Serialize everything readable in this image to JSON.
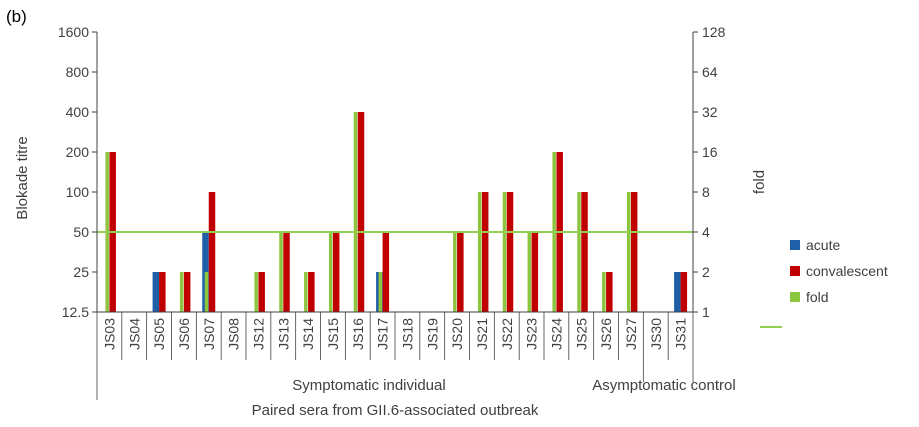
{
  "panel_label": "(b)",
  "chart_data": {
    "type": "bar",
    "ylabel_left": "Blokade titre",
    "ylabel_right": "fold",
    "yscale": "log",
    "ylim_left": [
      12.5,
      1600
    ],
    "ylim_right": [
      1,
      128
    ],
    "yticks_left": [
      "12.5",
      "25",
      "50",
      "100",
      "200",
      "400",
      "800",
      "1600"
    ],
    "yticks_right": [
      "1",
      "2",
      "4",
      "8",
      "16",
      "32",
      "64",
      "128"
    ],
    "categories": [
      "JS03",
      "JS04",
      "JS05",
      "JS06",
      "JS07",
      "JS08",
      "JS12",
      "JS13",
      "JS14",
      "JS15",
      "JS16",
      "JS17",
      "JS18",
      "JS19",
      "JS20",
      "JS21",
      "JS22",
      "JS23",
      "JS24",
      "JS25",
      "JS26",
      "JS27",
      "JS30",
      "JS31"
    ],
    "series": [
      {
        "name": "acute",
        "axis": "left",
        "color": "#1f5fa8",
        "values": [
          null,
          null,
          25,
          null,
          50,
          null,
          null,
          null,
          null,
          null,
          null,
          25,
          null,
          null,
          null,
          null,
          null,
          null,
          null,
          null,
          null,
          null,
          null,
          25
        ]
      },
      {
        "name": "convalescent",
        "axis": "left",
        "color": "#c00000",
        "values": [
          200,
          null,
          25,
          25,
          100,
          null,
          25,
          50,
          25,
          50,
          400,
          50,
          null,
          null,
          50,
          100,
          100,
          50,
          200,
          100,
          25,
          100,
          null,
          25
        ]
      },
      {
        "name": "fold",
        "axis": "right",
        "color": "#8cc63f",
        "values": [
          16,
          null,
          null,
          2,
          2,
          null,
          2,
          4,
          2,
          4,
          32,
          2,
          null,
          null,
          4,
          8,
          8,
          4,
          16,
          8,
          2,
          8,
          null,
          null
        ]
      }
    ],
    "threshold": {
      "value": 4,
      "axis": "right",
      "color": "#92d050"
    },
    "groups": [
      {
        "label": "Symptomatic individual"
      },
      {
        "label": "Asymptomatic control"
      }
    ],
    "xlabel": "Paired sera from GII.6-associated outbreak",
    "legend": {
      "position": "right",
      "entries": [
        "acute",
        "convalescent",
        "fold"
      ]
    }
  }
}
